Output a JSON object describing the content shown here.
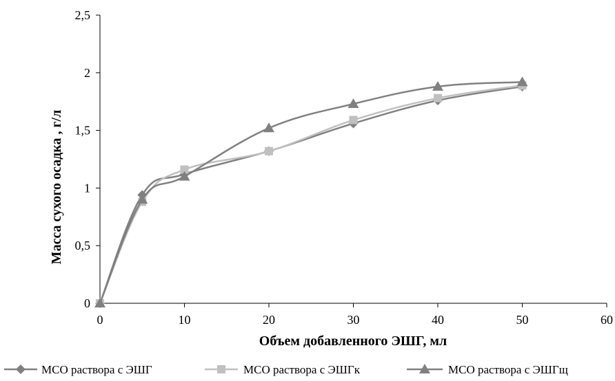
{
  "chart_data": {
    "type": "line",
    "xlabel": "Объем добавленного ЭШГ, мл",
    "ylabel": "Масса сухого осадка , г/л",
    "xlim": [
      0,
      60
    ],
    "ylim": [
      0,
      2.5
    ],
    "x_ticks": [
      0,
      10,
      20,
      30,
      40,
      50,
      60
    ],
    "y_ticks": [
      0,
      0.5,
      1,
      1.5,
      2,
      2.5
    ],
    "x_tick_labels": [
      "0",
      "10",
      "20",
      "30",
      "40",
      "50",
      "60"
    ],
    "y_tick_labels": [
      "0",
      "0,5",
      "1",
      "1,5",
      "2",
      "2,5"
    ],
    "grid": false,
    "legend_position": "bottom",
    "series": [
      {
        "name": "МСО раствора с ЭШГ",
        "color": "#808080",
        "marker": "diamond",
        "x": [
          0,
          5,
          10,
          20,
          30,
          40,
          50
        ],
        "y": [
          0,
          0.94,
          1.12,
          1.32,
          1.56,
          1.76,
          1.88
        ]
      },
      {
        "name": "МСО раствора с ЭШГк",
        "color": "#c0c0c0",
        "marker": "square",
        "x": [
          0,
          5,
          10,
          20,
          30,
          40,
          50
        ],
        "y": [
          0,
          0.88,
          1.16,
          1.32,
          1.59,
          1.78,
          1.89
        ]
      },
      {
        "name": "МСО раствора с ЭШГщ",
        "color": "#808080",
        "marker": "triangle",
        "x": [
          0,
          5,
          10,
          20,
          30,
          40,
          50
        ],
        "y": [
          0,
          0.9,
          1.1,
          1.52,
          1.73,
          1.88,
          1.92
        ]
      }
    ]
  }
}
